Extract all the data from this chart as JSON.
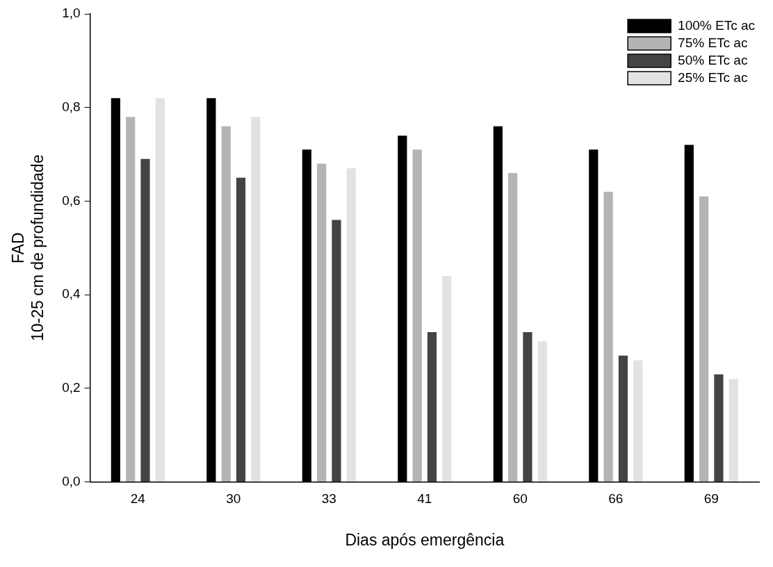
{
  "chart_data": {
    "type": "bar",
    "xlabel": "Dias após emergência",
    "ylabel": "FAD\n10-25 cm de profundidade",
    "categories": [
      "24",
      "30",
      "33",
      "41",
      "60",
      "66",
      "69"
    ],
    "series": [
      {
        "name": "100% ETc ac",
        "color": "#000000",
        "values": [
          0.82,
          0.82,
          0.71,
          0.74,
          0.76,
          0.71,
          0.72
        ]
      },
      {
        "name": "75% ETc ac",
        "color": "#b4b4b4",
        "values": [
          0.78,
          0.76,
          0.68,
          0.71,
          0.66,
          0.62,
          0.61
        ]
      },
      {
        "name": "50% ETc ac",
        "color": "#444444",
        "values": [
          0.69,
          0.65,
          0.56,
          0.32,
          0.32,
          0.27,
          0.23
        ]
      },
      {
        "name": "25% ETc ac",
        "color": "#e2e2e2",
        "values": [
          0.82,
          0.78,
          0.67,
          0.44,
          0.3,
          0.26,
          0.22
        ]
      }
    ],
    "ylim": [
      0,
      1
    ],
    "yticks": [
      {
        "value": 0,
        "label": "0,0"
      },
      {
        "value": 0.2,
        "label": "0,2"
      },
      {
        "value": 0.4,
        "label": "0,4"
      },
      {
        "value": 0.6,
        "label": "0,6"
      },
      {
        "value": 0.8,
        "label": "0,8"
      },
      {
        "value": 1,
        "label": "1,0"
      }
    ],
    "grid": false,
    "legend": "top right"
  }
}
